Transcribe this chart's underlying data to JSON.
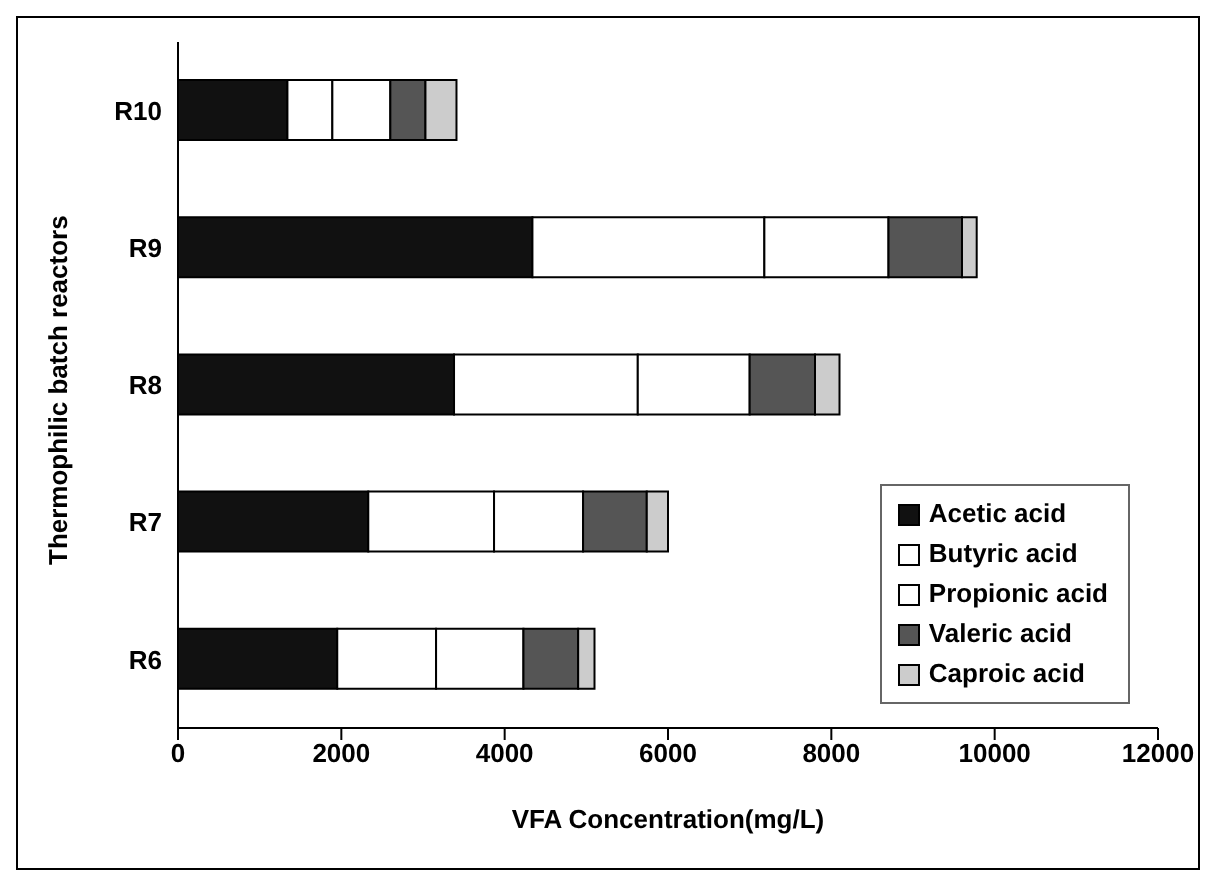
{
  "chart_data": {
    "type": "bar",
    "orientation": "horizontal",
    "stacked": true,
    "xlabel": "VFA Concentration(mg/L)",
    "ylabel": "Thermophilic batch reactors",
    "categories": [
      "R10",
      "R9",
      "R8",
      "R7",
      "R6"
    ],
    "series": [
      {
        "name": "Acetic acid",
        "color": "#111111",
        "values": [
          1340,
          4340,
          3380,
          2330,
          1950
        ]
      },
      {
        "name": "Butyric acid",
        "color": "#ffffff",
        "values": [
          550,
          2840,
          2250,
          1540,
          1210
        ]
      },
      {
        "name": "Propionic acid",
        "color": "#ffffff",
        "values": [
          710,
          1520,
          1370,
          1090,
          1070
        ]
      },
      {
        "name": "Valeric acid",
        "color": "#555555",
        "values": [
          430,
          900,
          800,
          780,
          670
        ]
      },
      {
        "name": "Caproic acid",
        "color": "#cccccc",
        "values": [
          380,
          180,
          300,
          260,
          200
        ]
      }
    ],
    "xlim": [
      0,
      12000
    ],
    "xticks": [
      0,
      2000,
      4000,
      6000,
      8000,
      10000,
      12000
    ],
    "grid": false,
    "legend": "bottom right"
  }
}
